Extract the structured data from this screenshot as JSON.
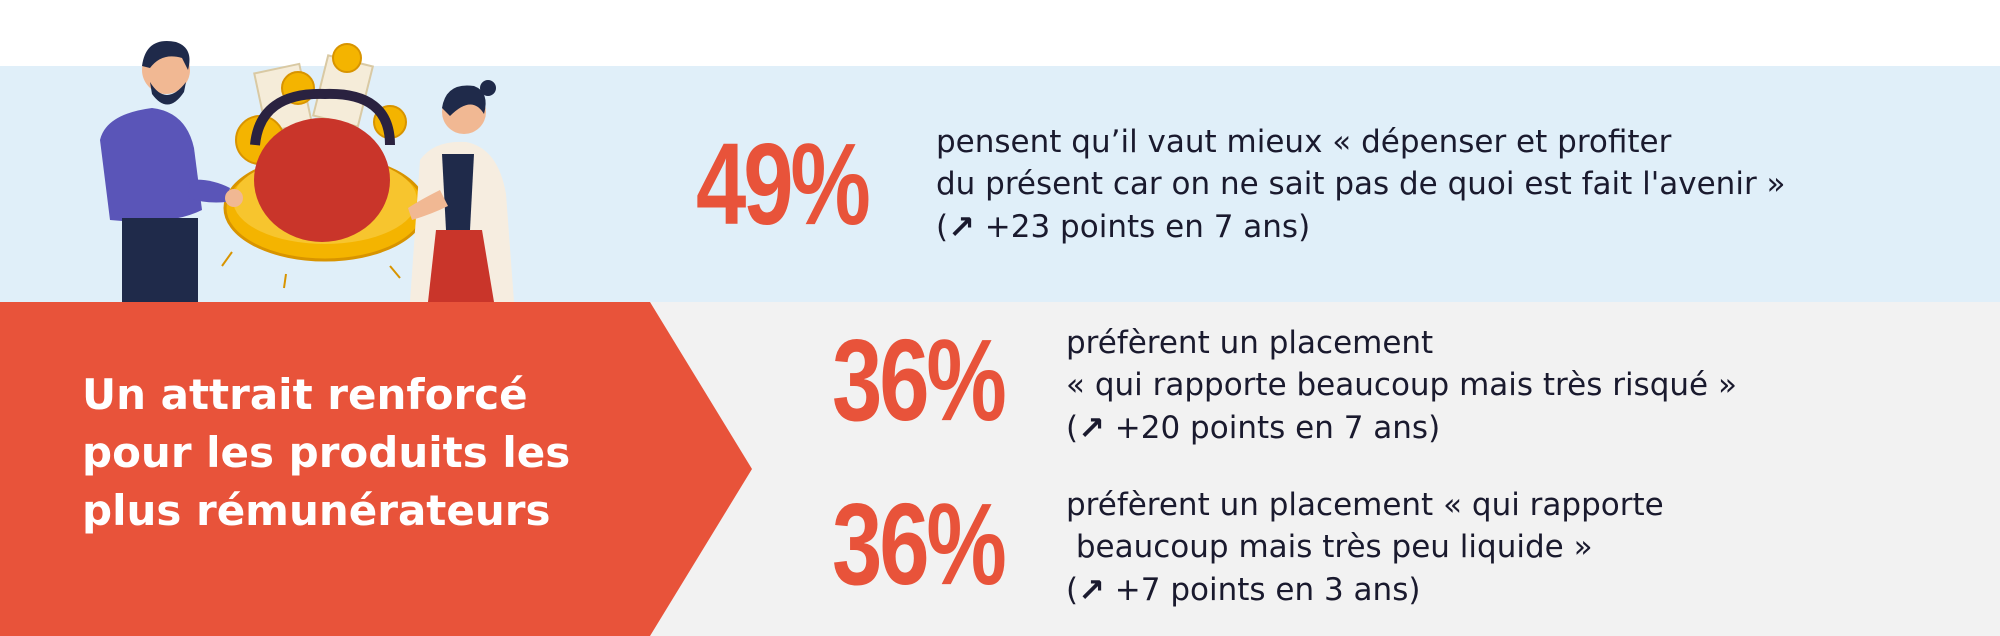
{
  "headline": {
    "lines": [
      "Un attrait renforcé",
      "pour les produits les",
      "plus rémunérateurs"
    ]
  },
  "stats": [
    {
      "value": "49%",
      "lines": [
        "pensent qu’il vaut mieux « dépenser et profiter",
        "du présent car on ne sait pas de quoi est fait l'avenir »"
      ],
      "trend": "+23 points en 7 ans"
    },
    {
      "value": "36%",
      "lines": [
        "préfèrent un placement",
        "« qui rapporte beaucoup mais très risqué »"
      ],
      "trend": "+20 points en 7 ans"
    },
    {
      "value": "36%",
      "lines": [
        "préfèrent un placement « qui rapporte",
        " beaucoup mais très peu liquide »"
      ],
      "trend": "+7 points en 3 ans"
    }
  ],
  "trend_icon": "arrow-up-right-icon",
  "illustration": "two-people-holding-coin-purse-illustration",
  "colors": {
    "accent": "#e8533a",
    "top_band": "#e0eff9",
    "bottom_band": "#f2f2f2",
    "text": "#1a1a2e"
  }
}
